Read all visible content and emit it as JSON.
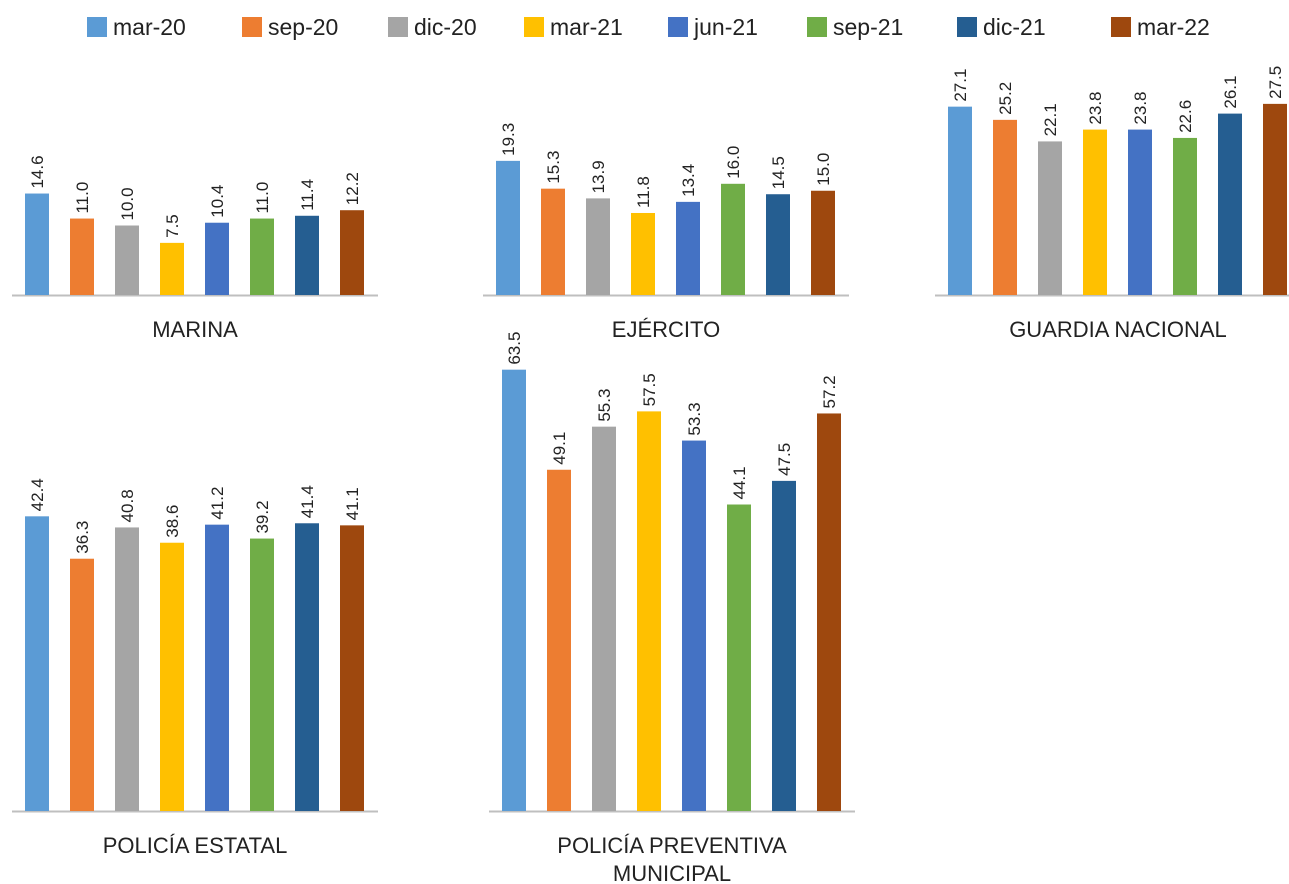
{
  "chart_data": {
    "type": "bar",
    "legend_position": "top",
    "grid": false,
    "series": [
      {
        "name": "mar-20",
        "color": "#5B9BD5"
      },
      {
        "name": "sep-20",
        "color": "#ED7D31"
      },
      {
        "name": "dic-20",
        "color": "#A5A5A5"
      },
      {
        "name": "mar-21",
        "color": "#FFC000"
      },
      {
        "name": "jun-21",
        "color": "#4472C4"
      },
      {
        "name": "sep-21",
        "color": "#70AD47"
      },
      {
        "name": "dic-21",
        "color": "#255E91"
      },
      {
        "name": "mar-22",
        "color": "#9E480E"
      }
    ],
    "panels": [
      {
        "title": "MARINA",
        "values": [
          14.6,
          11.0,
          10.0,
          7.5,
          10.4,
          11.0,
          11.4,
          12.2
        ]
      },
      {
        "title": "EJÉRCITO",
        "values": [
          19.3,
          15.3,
          13.9,
          11.8,
          13.4,
          16.0,
          14.5,
          15.0
        ]
      },
      {
        "title": "GUARDIA NACIONAL",
        "values": [
          27.1,
          25.2,
          22.1,
          23.8,
          23.8,
          22.6,
          26.1,
          27.5
        ]
      },
      {
        "title": "POLICÍA ESTATAL",
        "values": [
          42.4,
          36.3,
          40.8,
          38.6,
          41.2,
          39.2,
          41.4,
          41.1
        ]
      },
      {
        "title": [
          "POLICÍA PREVENTIVA",
          "MUNICIPAL"
        ],
        "values": [
          63.5,
          49.1,
          55.3,
          57.5,
          53.3,
          44.1,
          47.5,
          57.2
        ]
      }
    ]
  }
}
